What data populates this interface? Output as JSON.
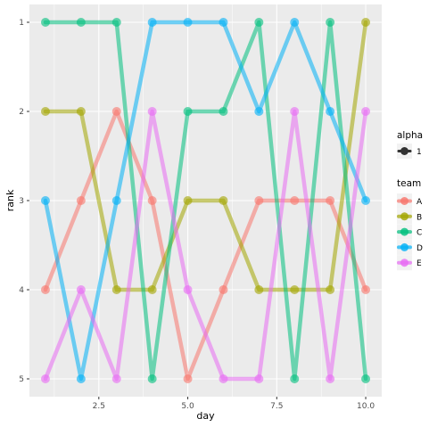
{
  "chart_data": {
    "type": "line",
    "xlabel": "day",
    "ylabel": "rank",
    "xlim": [
      0.55,
      10.45
    ],
    "ylim": [
      0.8,
      5.2
    ],
    "y_reversed": true,
    "x_ticks": [
      2.5,
      5.0,
      7.5,
      10.0
    ],
    "x_tick_labels": [
      "2.5",
      "5.0",
      "7.5",
      "10.0"
    ],
    "y_ticks": [
      1,
      2,
      3,
      4,
      5
    ],
    "y_tick_labels": [
      "1",
      "2",
      "3",
      "4",
      "5"
    ],
    "x": [
      1,
      2,
      3,
      4,
      5,
      6,
      7,
      8,
      9,
      10
    ],
    "series": [
      {
        "name": "A",
        "color": "#F8766D",
        "values": [
          4,
          3,
          2,
          3,
          5,
          4,
          3,
          3,
          3,
          4
        ]
      },
      {
        "name": "B",
        "color": "#A3A500",
        "values": [
          2,
          2,
          4,
          4,
          3,
          3,
          4,
          4,
          4,
          1
        ]
      },
      {
        "name": "C",
        "color": "#00BF7D",
        "values": [
          1,
          1,
          1,
          5,
          2,
          2,
          1,
          5,
          1,
          5
        ]
      },
      {
        "name": "D",
        "color": "#00B0F6",
        "values": [
          3,
          5,
          3,
          1,
          1,
          1,
          2,
          1,
          2,
          3
        ]
      },
      {
        "name": "E",
        "color": "#E76BF3",
        "values": [
          5,
          4,
          5,
          2,
          4,
          5,
          5,
          2,
          5,
          2
        ]
      }
    ],
    "legend": {
      "placement": "right",
      "alpha_title": "alpha",
      "alpha_label": "1",
      "team_title": "team"
    },
    "grid": true,
    "panel_background": "#EBEBEB"
  }
}
